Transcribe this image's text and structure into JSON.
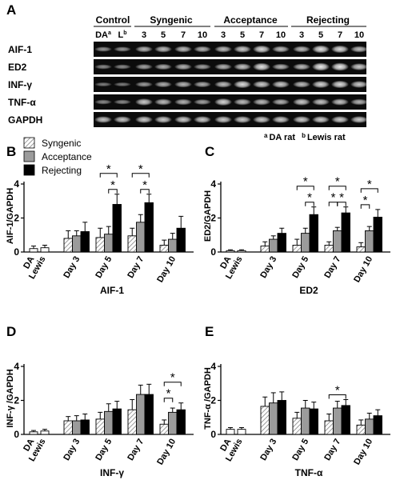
{
  "gel": {
    "panel_letter": "A",
    "group_headers": [
      "Control",
      "Syngenic",
      "Acceptance",
      "Rejecting"
    ],
    "control_lanes": [
      {
        "label": "DA",
        "sup": "a"
      },
      {
        "label": "L",
        "sup": "b"
      }
    ],
    "day_lanes": [
      "3",
      "5",
      "7",
      "10"
    ],
    "rows": [
      "AIF-1",
      "ED2",
      "INF-γ",
      "TNF-α",
      "GAPDH"
    ],
    "footnote_a": {
      "sup": "a",
      "text": "DA rat"
    },
    "footnote_b": {
      "sup": "b",
      "text": "Lewis rat"
    }
  },
  "legend": {
    "items": [
      {
        "name": "Syngenic",
        "style": "hatched"
      },
      {
        "name": "Acceptance",
        "style": "gray"
      },
      {
        "name": "Rejecting",
        "style": "black"
      }
    ]
  },
  "colors": {
    "syngenic_hatch": "#9a9a9a",
    "acceptance": "#9b9b9b",
    "rejecting": "#000000",
    "control_bar": "#ffffff"
  },
  "chart_data": [
    {
      "panel": "B",
      "type": "bar",
      "ylabel": "AIF-1/GAPDH",
      "xlabel": "AIF-1",
      "ylim": [
        0,
        4
      ],
      "yticks": [
        0,
        2,
        4
      ],
      "controls": [
        {
          "label": "DA",
          "value": 0.2,
          "err": 0.15
        },
        {
          "label": "Lewis",
          "value": 0.25,
          "err": 0.15
        }
      ],
      "categories": [
        "Day 3",
        "Day 5",
        "Day 7",
        "Day 10"
      ],
      "series": [
        {
          "name": "Syngenic",
          "values": [
            0.8,
            0.85,
            0.95,
            0.4
          ],
          "errors": [
            0.45,
            0.55,
            0.45,
            0.3
          ]
        },
        {
          "name": "Acceptance",
          "values": [
            0.95,
            1.05,
            1.75,
            0.75
          ],
          "errors": [
            0.3,
            0.45,
            0.45,
            0.35
          ]
        },
        {
          "name": "Rejecting",
          "values": [
            1.2,
            2.8,
            2.9,
            1.4
          ],
          "errors": [
            0.55,
            0.6,
            0.5,
            0.7
          ]
        }
      ],
      "brackets": [
        {
          "cat": 1,
          "from": 0,
          "to": 2,
          "tier": 1,
          "label": "*"
        },
        {
          "cat": 1,
          "from": 1,
          "to": 2,
          "tier": 0,
          "label": "*"
        },
        {
          "cat": 2,
          "from": 0,
          "to": 2,
          "tier": 1,
          "label": "*"
        },
        {
          "cat": 2,
          "from": 1,
          "to": 2,
          "tier": 0,
          "label": "*"
        }
      ]
    },
    {
      "panel": "C",
      "type": "bar",
      "ylabel": "ED2/GAPDH",
      "xlabel": "ED2",
      "ylim": [
        0,
        4
      ],
      "yticks": [
        0,
        2,
        4
      ],
      "controls": [
        {
          "label": "DA",
          "value": 0.08,
          "err": 0.05
        },
        {
          "label": "Lewis",
          "value": 0.08,
          "err": 0.05
        }
      ],
      "categories": [
        "Day 3",
        "Day 5",
        "Day 7",
        "Day 10"
      ],
      "series": [
        {
          "name": "Syngenic",
          "values": [
            0.35,
            0.4,
            0.4,
            0.3
          ],
          "errors": [
            0.25,
            0.35,
            0.2,
            0.25
          ]
        },
        {
          "name": "Acceptance",
          "values": [
            0.75,
            1.1,
            1.25,
            1.25
          ],
          "errors": [
            0.2,
            0.3,
            0.2,
            0.25
          ]
        },
        {
          "name": "Rejecting",
          "values": [
            1.1,
            2.2,
            2.3,
            2.05
          ],
          "errors": [
            0.3,
            0.45,
            0.35,
            0.45
          ]
        }
      ],
      "brackets": [
        {
          "cat": 1,
          "from": 0,
          "to": 2,
          "tier": 1,
          "label": "*"
        },
        {
          "cat": 1,
          "from": 1,
          "to": 2,
          "tier": 0,
          "label": "*"
        },
        {
          "cat": 2,
          "from": 0,
          "to": 2,
          "tier": 1,
          "label": "*"
        },
        {
          "cat": 2,
          "from": 1,
          "to": 2,
          "tier": 0,
          "label": "*"
        },
        {
          "cat": 2,
          "from": 0,
          "to": 1,
          "tier": 0,
          "label": "*"
        },
        {
          "cat": 3,
          "from": 0,
          "to": 2,
          "tier": 1,
          "label": "*"
        },
        {
          "cat": 3,
          "from": 0,
          "to": 1,
          "tier": 0,
          "label": "*"
        }
      ]
    },
    {
      "panel": "D",
      "type": "bar",
      "ylabel": "INF-γ /GAPDH",
      "xlabel": "INF-γ",
      "ylim": [
        0,
        4
      ],
      "yticks": [
        0,
        2,
        4
      ],
      "controls": [
        {
          "label": "DA",
          "value": 0.15,
          "err": 0.08
        },
        {
          "label": "Lewis",
          "value": 0.2,
          "err": 0.1
        }
      ],
      "categories": [
        "Day 3",
        "Day 5",
        "Day 7",
        "Day 10"
      ],
      "series": [
        {
          "name": "Syngenic",
          "values": [
            0.8,
            0.9,
            1.45,
            0.6
          ],
          "errors": [
            0.25,
            0.4,
            0.6,
            0.25
          ]
        },
        {
          "name": "Acceptance",
          "values": [
            0.8,
            1.35,
            2.35,
            1.3
          ],
          "errors": [
            0.3,
            0.45,
            0.55,
            0.25
          ]
        },
        {
          "name": "Rejecting",
          "values": [
            0.85,
            1.5,
            2.35,
            1.45
          ],
          "errors": [
            0.35,
            0.45,
            0.6,
            0.4
          ]
        }
      ],
      "brackets": [
        {
          "cat": 3,
          "from": 0,
          "to": 2,
          "tier": 1,
          "label": "*"
        },
        {
          "cat": 3,
          "from": 0,
          "to": 1,
          "tier": 0,
          "label": "*"
        }
      ]
    },
    {
      "panel": "E",
      "type": "bar",
      "ylabel": "TNF-α /GAPDH",
      "xlabel": "TNF-α",
      "ylim": [
        0,
        4
      ],
      "yticks": [
        0,
        2,
        4
      ],
      "controls": [
        {
          "label": "DA",
          "value": 0.3,
          "err": 0.1
        },
        {
          "label": "Lewis",
          "value": 0.3,
          "err": 0.1
        }
      ],
      "categories": [
        "Day 3",
        "Day 5",
        "Day 7",
        "Day 10"
      ],
      "series": [
        {
          "name": "Syngenic",
          "values": [
            1.65,
            0.95,
            0.8,
            0.55
          ],
          "errors": [
            0.55,
            0.35,
            0.4,
            0.3
          ]
        },
        {
          "name": "Acceptance",
          "values": [
            1.85,
            1.55,
            1.55,
            0.9
          ],
          "errors": [
            0.6,
            0.45,
            0.4,
            0.35
          ]
        },
        {
          "name": "Rejecting",
          "values": [
            2.0,
            1.5,
            1.7,
            1.1
          ],
          "errors": [
            0.5,
            0.4,
            0.35,
            0.35
          ]
        }
      ],
      "brackets": [
        {
          "cat": 2,
          "from": 0,
          "to": 2,
          "tier": 0,
          "label": "*"
        }
      ]
    }
  ]
}
